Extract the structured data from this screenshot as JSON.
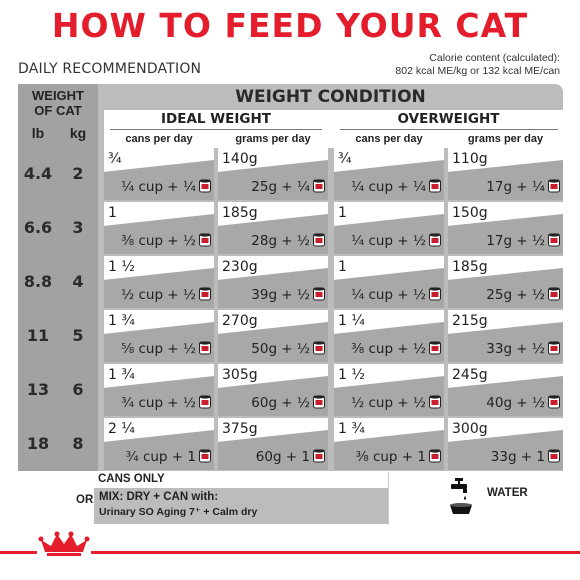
{
  "title": "HOW TO FEED YOUR CAT",
  "subtitle": "DAILY RECOMMENDATION",
  "calorie": {
    "line1": "Calorie content (calculated):",
    "line2": "802 kcal ME/kg or 132 kcal ME/can"
  },
  "header": {
    "weight_of_cat": [
      "WEIGHT",
      "OF CAT"
    ],
    "unit_lb": "lb",
    "unit_kg": "kg",
    "weight_condition": "WEIGHT CONDITION",
    "ideal": "IDEAL WEIGHT",
    "overweight": "OVERWEIGHT",
    "cans_per_day": "cans per day",
    "grams_per_day": "grams per day"
  },
  "rows": [
    {
      "lb": "4.4",
      "kg": "2",
      "ideal_cans": "¾",
      "ideal_cans_mix": "¼ cup + ¼",
      "ideal_grams": "140g",
      "ideal_grams_mix": "25g + ¼",
      "over_cans": "¾",
      "over_cans_mix": "¼ cup + ¼",
      "over_grams": "110g",
      "over_grams_mix": "17g + ¼"
    },
    {
      "lb": "6.6",
      "kg": "3",
      "ideal_cans": "1",
      "ideal_cans_mix": "⅜ cup + ½",
      "ideal_grams": "185g",
      "ideal_grams_mix": "28g + ½",
      "over_cans": "1",
      "over_cans_mix": "¼ cup + ½",
      "over_grams": "150g",
      "over_grams_mix": "17g + ½"
    },
    {
      "lb": "8.8",
      "kg": "4",
      "ideal_cans": "1 ½",
      "ideal_cans_mix": "½ cup + ½",
      "ideal_grams": "230g",
      "ideal_grams_mix": "39g + ½",
      "over_cans": "1",
      "over_cans_mix": "¼ cup + ½",
      "over_grams": "185g",
      "over_grams_mix": "25g + ½"
    },
    {
      "lb": "11",
      "kg": "5",
      "ideal_cans": "1 ¾",
      "ideal_cans_mix": "⅝ cup + ½",
      "ideal_grams": "270g",
      "ideal_grams_mix": "50g + ½",
      "over_cans": "1 ¼",
      "over_cans_mix": "⅜ cup + ½",
      "over_grams": "215g",
      "over_grams_mix": "33g + ½"
    },
    {
      "lb": "13",
      "kg": "6",
      "ideal_cans": "1 ¾",
      "ideal_cans_mix": "¾ cup + ½",
      "ideal_grams": "305g",
      "ideal_grams_mix": "60g + ½",
      "over_cans": "1 ½",
      "over_cans_mix": "½ cup + ½",
      "over_grams": "245g",
      "over_grams_mix": "40g + ½"
    },
    {
      "lb": "18",
      "kg": "8",
      "ideal_cans": "2 ¼",
      "ideal_cans_mix": "¾ cup + 1",
      "ideal_grams": "375g",
      "ideal_grams_mix": "60g + 1",
      "over_cans": "1 ¾",
      "over_cans_mix": "⅜ cup + 1",
      "over_grams": "300g",
      "over_grams_mix": "33g + 1"
    }
  ],
  "footer": {
    "cans_only": "CANS ONLY",
    "or": "OR",
    "mix_line1": "MIX: DRY + CAN with:",
    "mix_line2": "Urinary SO Aging 7⁺ + Calm dry",
    "water": "WATER"
  },
  "colors": {
    "accent_red": "#e31d2b",
    "header_gray": "#bcbcbc",
    "left_col_gray": "#a2a2a2",
    "mix_gray": "#a8a8a8"
  },
  "icons": {
    "can": "can-icon",
    "water": "water-tap-bowl-icon",
    "brand": "royal-canin-crown-icon"
  }
}
